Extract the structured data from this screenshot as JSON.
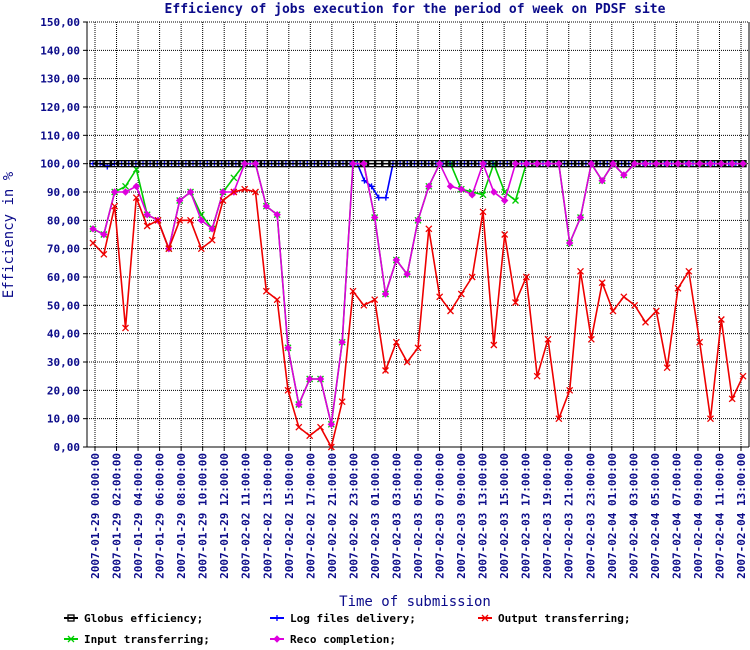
{
  "chart_data": {
    "type": "line",
    "title": "Efficiency of jobs execution for the period of week on  PDSF site",
    "xlabel": "Time of submission",
    "ylabel": "Efficiency in %",
    "ylim": [
      0,
      150
    ],
    "yticks": [
      "0,00",
      "10,00",
      "20,00",
      "30,00",
      "40,00",
      "50,00",
      "60,00",
      "70,00",
      "80,00",
      "90,00",
      "100,00",
      "110,00",
      "120,00",
      "130,00",
      "140,00",
      "150,00"
    ],
    "xtick_labels": [
      "2007-01-29 00:00:00",
      "2007-01-29 02:00:00",
      "2007-01-29 04:00:00",
      "2007-01-29 06:00:00",
      "2007-01-29 08:00:00",
      "2007-01-29 10:00:00",
      "2007-01-29 12:00:00",
      "2007-02-02 11:00:00",
      "2007-02-02 13:00:00",
      "2007-02-02 15:00:00",
      "2007-02-02 17:00:00",
      "2007-02-02 21:00:00",
      "2007-02-02 23:00:00",
      "2007-02-03 01:00:00",
      "2007-02-03 03:00:00",
      "2007-02-03 05:00:00",
      "2007-02-03 07:00:00",
      "2007-02-03 09:00:00",
      "2007-02-03 13:00:00",
      "2007-02-03 15:00:00",
      "2007-02-03 17:00:00",
      "2007-02-03 19:00:00",
      "2007-02-03 21:00:00",
      "2007-02-03 23:00:00",
      "2007-02-04 01:00:00",
      "2007-02-04 03:00:00",
      "2007-02-04 05:00:00",
      "2007-02-04 07:00:00",
      "2007-02-04 09:00:00",
      "2007-02-04 11:00:00",
      "2007-02-04 13:00:00"
    ],
    "grid": true,
    "legend_position": "bottom",
    "series": [
      {
        "name": "Globus efficiency;",
        "color": "#000000",
        "marker": "square",
        "values": [
          100,
          100,
          100,
          100,
          100,
          100,
          100,
          100,
          100,
          100,
          100,
          100,
          100,
          100,
          100,
          100,
          100,
          100,
          100,
          100,
          100,
          100,
          100,
          100,
          100,
          100,
          100,
          100,
          100,
          100,
          100,
          100,
          100,
          100,
          100,
          100,
          100,
          100,
          100,
          100,
          100,
          100,
          100,
          100,
          100,
          100,
          100,
          100,
          100,
          100,
          100,
          100,
          100,
          100,
          100,
          100,
          100,
          100,
          100,
          100,
          100,
          100,
          100,
          100,
          100,
          100,
          100,
          100,
          100,
          100,
          100,
          100,
          100,
          100,
          100,
          100,
          100,
          100,
          100,
          100,
          100,
          100,
          100,
          100,
          100,
          100,
          100,
          100,
          100,
          100,
          100,
          100
        ]
      },
      {
        "name": "Log files delivery;",
        "color": "#0000ff",
        "marker": "plus",
        "values": [
          100,
          100,
          99,
          100,
          100,
          100,
          100,
          100,
          100,
          100,
          100,
          100,
          100,
          100,
          100,
          100,
          100,
          100,
          100,
          100,
          100,
          100,
          100,
          100,
          100,
          100,
          100,
          100,
          100,
          100,
          100,
          100,
          100,
          100,
          100,
          100,
          100,
          100,
          94,
          92,
          88,
          88,
          100,
          100,
          100,
          100,
          100,
          100,
          100,
          100,
          100,
          100,
          100,
          100,
          100,
          100,
          100,
          100,
          100,
          100,
          100,
          100,
          100,
          100,
          100,
          100,
          100,
          100,
          100,
          100,
          100,
          100,
          100,
          100,
          100,
          100,
          100,
          100,
          100,
          100,
          100,
          100,
          100,
          100,
          100,
          100,
          100,
          100,
          100,
          100,
          100,
          100
        ]
      },
      {
        "name": "Output transferring;",
        "color": "#ee0000",
        "marker": "x",
        "values": [
          72,
          68,
          85,
          42,
          88,
          78,
          80,
          70,
          80,
          80,
          70,
          73,
          87,
          90,
          91,
          90,
          55,
          52,
          20,
          7,
          4,
          7,
          0,
          16,
          55,
          50,
          52,
          27,
          37,
          30,
          35,
          77,
          53,
          48,
          54,
          60,
          83,
          36,
          75,
          51,
          60,
          25,
          38,
          10,
          20,
          62,
          38,
          58,
          48,
          53,
          50,
          44,
          48,
          28,
          56,
          62,
          37,
          10,
          45,
          17,
          25
        ]
      },
      {
        "name": "Input transferring;",
        "color": "#00cc00",
        "marker": "x",
        "values": [
          77,
          75,
          90,
          92,
          98,
          82,
          80,
          70,
          87,
          90,
          82,
          77,
          90,
          95,
          100,
          100,
          85,
          82,
          35,
          15,
          24,
          24,
          8,
          37,
          100,
          100,
          81,
          54,
          66,
          61,
          80,
          92,
          100,
          100,
          91,
          90,
          89,
          100,
          90,
          87,
          100,
          100,
          100,
          100,
          72,
          81,
          100,
          94,
          100,
          96,
          100,
          100,
          100,
          100,
          100,
          100,
          100,
          100,
          100,
          100,
          100
        ]
      },
      {
        "name": "Reco completion;",
        "color": "#dd00dd",
        "marker": "diamond",
        "values": [
          77,
          75,
          90,
          90,
          92,
          82,
          80,
          70,
          87,
          90,
          80,
          77,
          90,
          90,
          100,
          100,
          85,
          82,
          35,
          15,
          24,
          24,
          8,
          37,
          100,
          100,
          81,
          54,
          66,
          61,
          80,
          92,
          100,
          92,
          91,
          89,
          100,
          90,
          87,
          100,
          100,
          100,
          100,
          100,
          72,
          81,
          100,
          94,
          100,
          96,
          100,
          100,
          100,
          100,
          100,
          100,
          100,
          100,
          100,
          100,
          100
        ]
      }
    ]
  }
}
